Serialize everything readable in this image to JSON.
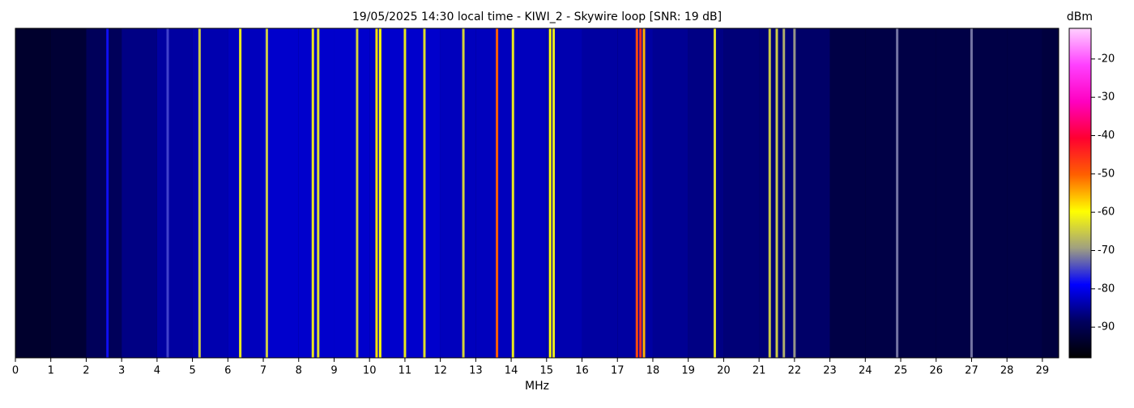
{
  "chart_data": {
    "type": "spectrogram",
    "title": "19/05/2025 14:30 local time - KIWI_2 - Skywire loop [SNR: 19 dB]",
    "xlabel": "MHz",
    "xlim": [
      0,
      29.46
    ],
    "xticks": [
      0,
      1,
      2,
      3,
      4,
      5,
      6,
      7,
      8,
      9,
      10,
      11,
      12,
      13,
      14,
      15,
      16,
      17,
      18,
      19,
      20,
      21,
      22,
      23,
      24,
      25,
      26,
      27,
      28,
      29
    ],
    "colorbar_label": "dBm",
    "clim": [
      -98,
      -12
    ],
    "cticks": [
      -90,
      -80,
      -70,
      -60,
      -50,
      -40,
      -30,
      -20
    ],
    "colormap": [
      "#000000",
      "#000060",
      "#0000ff",
      "#a0a080",
      "#ffff00",
      "#ff6000",
      "#ff0030",
      "#ff00c0",
      "#ff40ff",
      "#ffd0ff"
    ],
    "noise_floor": {
      "x": [
        0,
        1,
        2,
        3,
        4,
        5,
        6,
        7,
        8,
        9,
        10,
        11,
        12,
        13,
        14,
        15,
        16,
        17,
        18,
        19,
        20,
        21,
        22,
        23,
        24,
        25,
        26,
        27,
        28,
        29
      ],
      "values": [
        -93,
        -92,
        -88,
        -85,
        -83,
        -82,
        -81,
        -80,
        -80,
        -80,
        -80,
        -80,
        -81,
        -81,
        -81,
        -82,
        -83,
        -83,
        -84,
        -85,
        -86,
        -86,
        -87,
        -90,
        -90,
        -90,
        -90,
        -90,
        -90,
        -91
      ]
    },
    "signals": {
      "x": [
        2.6,
        4.3,
        5.2,
        6.35,
        7.1,
        8.4,
        8.55,
        9.65,
        10.2,
        10.3,
        11.0,
        11.55,
        12.65,
        13.6,
        14.05,
        15.1,
        15.2,
        17.55,
        17.65,
        17.75,
        19.75,
        21.3,
        21.5,
        21.7,
        22.0,
        24.9,
        27.0
      ],
      "values": [
        -78,
        -75,
        -65,
        -62,
        -65,
        -62,
        -63,
        -64,
        -58,
        -60,
        -62,
        -63,
        -64,
        -50,
        -62,
        -60,
        -62,
        -48,
        -45,
        -55,
        -63,
        -65,
        -65,
        -68,
        -70,
        -72,
        -72
      ]
    }
  }
}
